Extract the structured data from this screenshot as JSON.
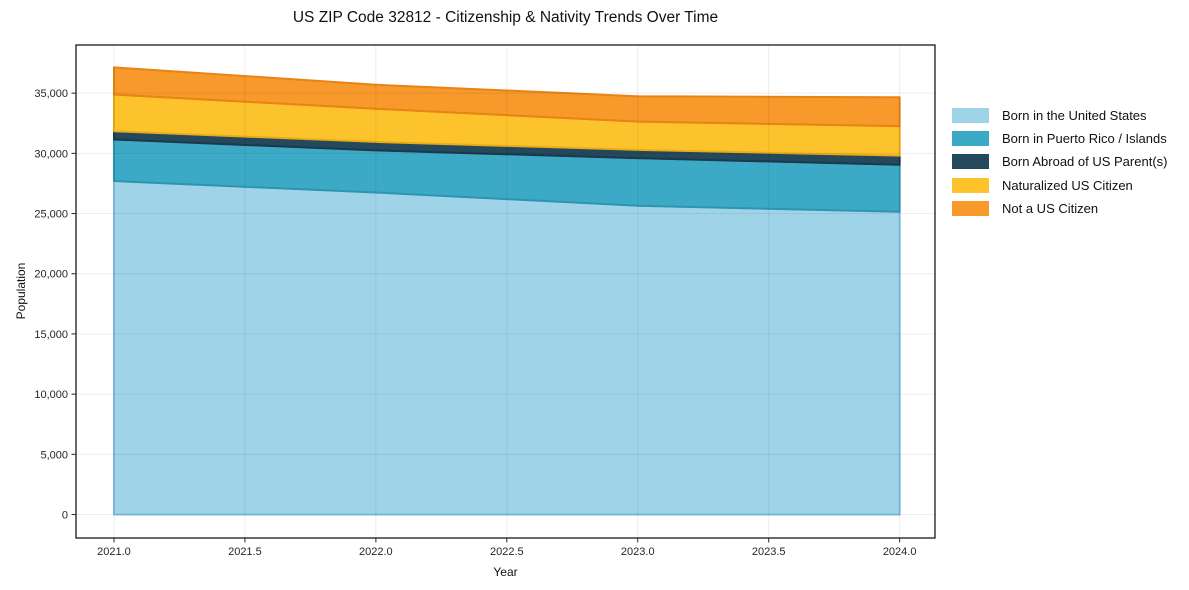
{
  "chart_data": {
    "type": "area",
    "stacked": true,
    "title": "US ZIP Code 32812 - Citizenship & Nativity Trends Over Time",
    "xlabel": "Year",
    "ylabel": "Population",
    "x": [
      2021,
      2022,
      2023,
      2024
    ],
    "series": [
      {
        "name": "Born in the United States",
        "color": "#9fd3e8",
        "edge": "#7fc0dc",
        "values": [
          27700,
          26750,
          25650,
          25150
        ]
      },
      {
        "name": "Born in Puerto Rico / Islands",
        "color": "#3caac6",
        "edge": "#2e95b0",
        "values": [
          3450,
          3500,
          3950,
          3900
        ]
      },
      {
        "name": "Born Abroad of US Parent(s)",
        "color": "#25495c",
        "edge": "#1b3949",
        "values": [
          690,
          700,
          690,
          760
        ]
      },
      {
        "name": "Naturalized US Citizen",
        "color": "#fdc32d",
        "edge": "#eaad15",
        "values": [
          3050,
          2750,
          2350,
          2450
        ]
      },
      {
        "name": "Not a US Citizen",
        "color": "#f8992c",
        "edge": "#e88315",
        "values": [
          2250,
          2000,
          2100,
          2400
        ]
      }
    ],
    "stack_totals": [
      37140,
      35700,
      34740,
      34660
    ],
    "xlim": [
      2020.855,
      2024.135
    ],
    "ylim": [
      -1950,
      39000
    ],
    "xticks": [
      2021.0,
      2021.5,
      2022.0,
      2022.5,
      2023.0,
      2023.5,
      2024.0
    ],
    "yticks": [
      0,
      5000,
      10000,
      15000,
      20000,
      25000,
      30000,
      35000
    ],
    "grid": true,
    "legend_position": "right-outside",
    "frame_color": "#1a1a1a",
    "grid_color": "rgba(0,0,0,0.07)",
    "tick_color": "#262626",
    "background": "#ffffff"
  }
}
